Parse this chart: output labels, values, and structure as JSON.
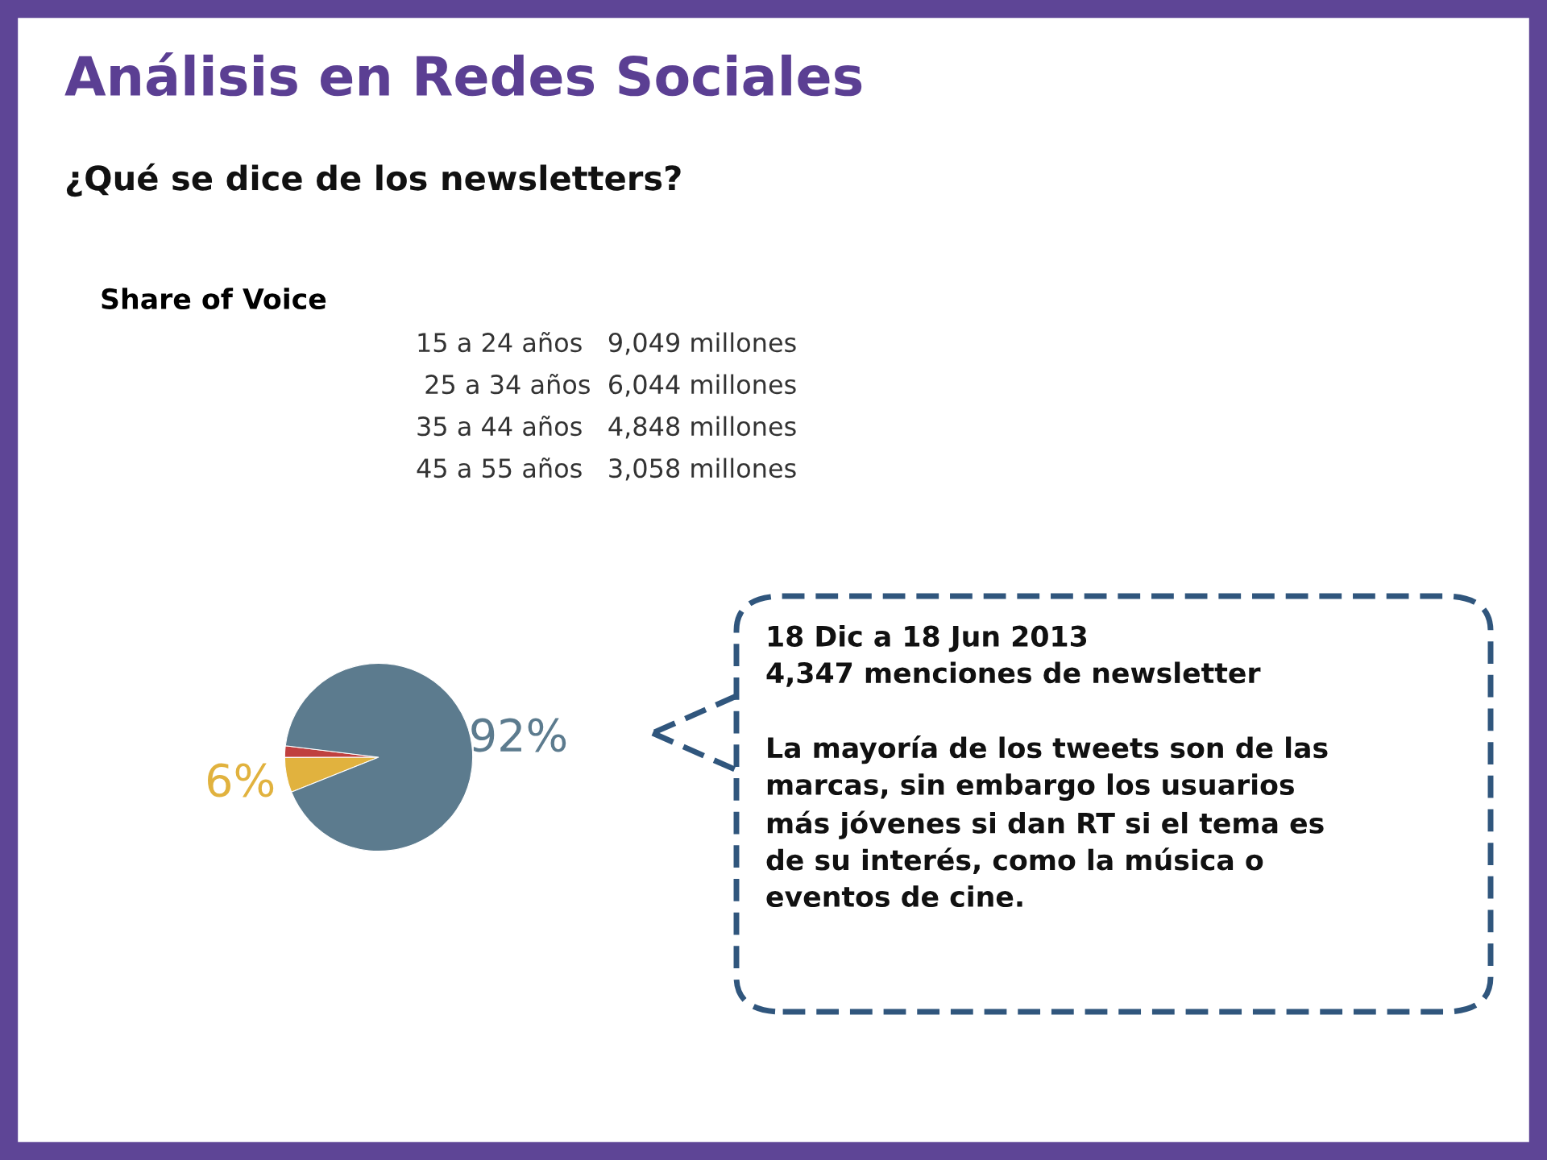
{
  "chart_data": {
    "type": "pie",
    "title": "Análisis en Redes Sociales",
    "subtitle": "¿Qué se dice de los newsletters?",
    "categories": [
      null,
      null,
      null
    ],
    "values": [
      2,
      6,
      92
    ],
    "colors": [
      "#c0403f",
      "#e1b23e",
      "#5c7b8e"
    ],
    "value_labels": [
      null,
      "6%",
      "92%"
    ],
    "annotations": [
      "Share of Voice",
      "15 a 24 años   9,049 millones",
      " 25 a 34 años  6,044 millones",
      "35 a 44 años   4,848 millones",
      "45 a 55 años   3,058 millones",
      "18 Dic a 18 Jun 2013\n4,347 menciones de newsletter\n\nLa mayoría de los tweets son de las\nmarcas, sin embargo los usuarios\nmás jóvenes si dan RT si el tema es\nde su interés, como la música o\neventos de cine."
    ]
  }
}
